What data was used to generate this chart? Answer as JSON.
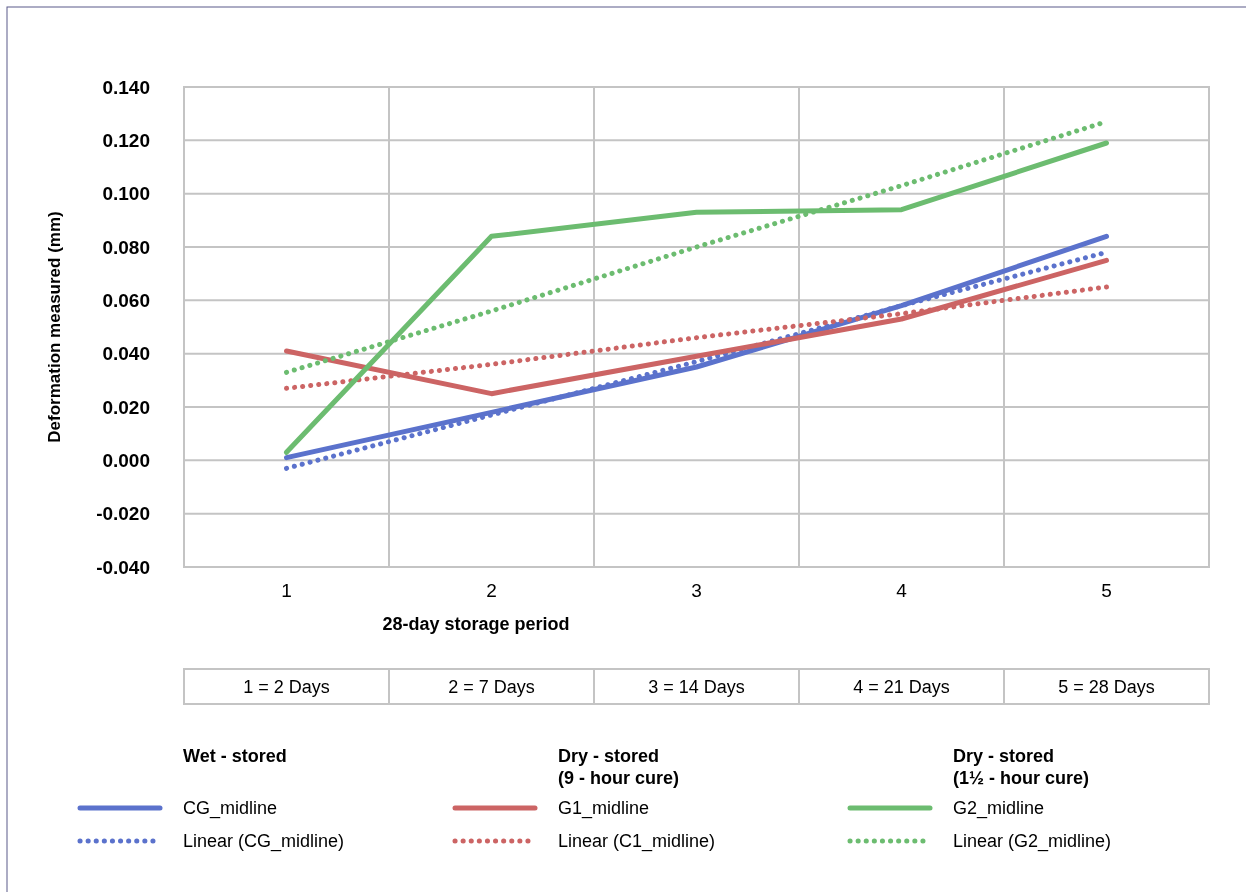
{
  "chart_data": {
    "type": "line",
    "xlabel": "28-day storage period",
    "ylabel": "Deformation measured (mm)",
    "categories": [
      "1",
      "2",
      "3",
      "4",
      "5"
    ],
    "ylim": [
      -0.04,
      0.14
    ],
    "yticks": [
      {
        "value": -0.04,
        "label": "-0.040"
      },
      {
        "value": -0.02,
        "label": "-0.020"
      },
      {
        "value": 0,
        "label": "0.000"
      },
      {
        "value": 0.02,
        "label": "0.020"
      },
      {
        "value": 0.04,
        "label": "0.040"
      },
      {
        "value": 0.06,
        "label": "0.060"
      },
      {
        "value": 0.08,
        "label": "0.080"
      },
      {
        "value": 0.1,
        "label": "0.100"
      },
      {
        "value": 0.12,
        "label": "0.120"
      },
      {
        "value": 0.14,
        "label": "0.140"
      }
    ],
    "grid": true,
    "legend": "bottom",
    "marker": "none",
    "series": [
      {
        "name": "CG_midline",
        "color": "#5b72cc",
        "line_style": "solid",
        "values": [
          0.001,
          0.018,
          0.035,
          0.058,
          0.084
        ]
      },
      {
        "name": "Linear (CG_midline)",
        "color": "#5b72cc",
        "line_style": "dotted",
        "values": [
          -0.003,
          0.017,
          0.037,
          0.058,
          0.078
        ]
      },
      {
        "name": "G1_midline",
        "color": "#cc6464",
        "line_style": "solid",
        "values": [
          0.041,
          0.025,
          0.039,
          0.053,
          0.075
        ]
      },
      {
        "name": "Linear (C1_midline)",
        "color": "#cc6464",
        "line_style": "dotted",
        "values": [
          0.027,
          0.036,
          0.046,
          0.055,
          0.065
        ]
      },
      {
        "name": "G2_midline",
        "color": "#6cbc70",
        "line_style": "solid",
        "values": [
          0.003,
          0.084,
          0.093,
          0.094,
          0.119
        ]
      },
      {
        "name": "Linear (G2_midline)",
        "color": "#6cbc70",
        "line_style": "dotted",
        "values": [
          0.033,
          0.056,
          0.08,
          0.103,
          0.127
        ]
      }
    ],
    "annotations": [
      "1 = 2 Days",
      "2 = 7 Days",
      "3 = 14 Days",
      "4 = 21 Days",
      "5 = 28 Days",
      "Wet - stored",
      "Dry - stored\n(9 - hour cure)",
      "Dry - stored\n(1½ - hour cure)"
    ]
  }
}
